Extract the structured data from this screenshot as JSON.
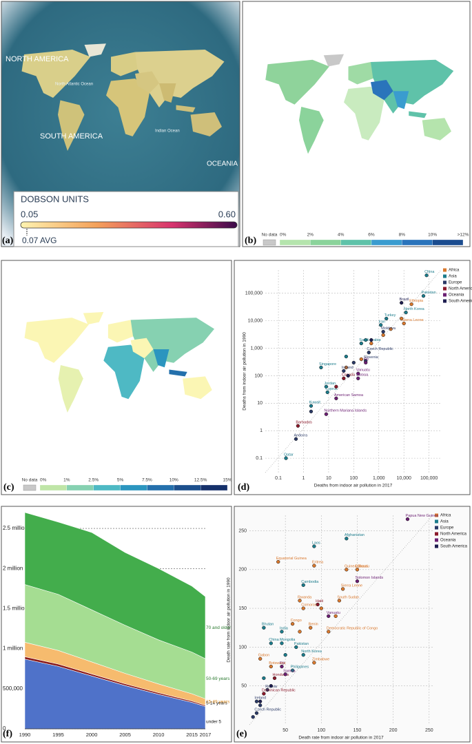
{
  "panels": {
    "a": {
      "label": "(a)",
      "map_labels": [
        "NORTH AMERICA",
        "North Atlantic Ocean",
        "SOUTH AMERICA",
        "Indian Ocean",
        "OCEANIA"
      ],
      "legend": {
        "title": "DOBSON UNITS",
        "min": "0.05",
        "max": "0.60",
        "avg": "0.07 AVG"
      }
    },
    "b": {
      "label": "(b)",
      "legend": {
        "labels": [
          "No data",
          "0%",
          "2%",
          "4%",
          "6%",
          "8%",
          "10%",
          ">12%"
        ],
        "colors": [
          "#c8c8c8",
          "#dff3d3",
          "#b5e4ad",
          "#8bd39b",
          "#5fc2a9",
          "#3a9ccf",
          "#2a74bb",
          "#1b4c8f"
        ]
      }
    },
    "c": {
      "label": "(c)",
      "legend": {
        "labels": [
          "No data",
          "0%",
          "1%",
          "2.5%",
          "5%",
          "7.5%",
          "10%",
          "12.5%",
          "15%"
        ],
        "colors": [
          "#c8c8c8",
          "#fbf6b4",
          "#bfe5a7",
          "#86d1b1",
          "#4eb9c4",
          "#2b95bf",
          "#2470ac",
          "#1c4f8c",
          "#15306a"
        ]
      }
    }
  },
  "chart_data": [
    {
      "type": "scatter",
      "panel_label": "(d)",
      "log": true,
      "x_label": "Deaths from indoor air pollution in 2017",
      "y_label": "Deaths from indoor air pollution in 1990",
      "xlim": [
        0.03,
        300000
      ],
      "ylim": [
        0.03,
        700000
      ],
      "xticks": [
        0.1,
        1,
        10,
        100,
        {
          "value": 1000,
          "label": "1,000"
        },
        {
          "value": 10000,
          "label": "10,000"
        },
        {
          "value": 100000,
          "label": "100,000"
        }
      ],
      "yticks": [
        0.1,
        1,
        10,
        100,
        {
          "value": 1000,
          "label": "1,000"
        },
        {
          "value": 10000,
          "label": "10,000"
        },
        {
          "value": 100000,
          "label": "100,000"
        }
      ],
      "grid": true,
      "series": [
        {
          "name": "Africa",
          "color": "#d9782d",
          "x": [
            20000,
            10000,
            8000,
            3000,
            500,
            1500,
            50,
            200
          ],
          "values": [
            40000,
            8000,
            12000,
            5000,
            1500,
            3000,
            200,
            400
          ],
          "labels": [
            "Ethiopia",
            "Sierra Leone",
            null,
            null,
            null,
            null,
            null,
            null
          ]
        },
        {
          "name": "Asia",
          "color": "#1c7c8c",
          "x": [
            80000,
            60000,
            12000,
            2000,
            1200,
            200,
            5,
            8,
            9,
            2,
            0.2,
            300,
            50
          ],
          "values": [
            450000,
            80000,
            20000,
            12000,
            7000,
            1500,
            200,
            40,
            25,
            8,
            0.1,
            2000,
            500
          ],
          "labels": [
            "China",
            "Pakistan",
            "North Korea",
            "Turkey",
            "Iran",
            "Saudi Arabia",
            "Singapore",
            "Jordan",
            "Cyprus",
            "Kuwait",
            "Qatar",
            null,
            null
          ]
        },
        {
          "name": "Europe",
          "color": "#2b3a67",
          "x": [
            1500,
            400,
            300,
            40,
            0.5,
            100,
            2
          ],
          "values": [
            4000,
            700,
            350,
            150,
            0.5,
            300,
            5
          ],
          "labels": [
            "Moldova",
            "Czech Republic",
            "Slovenia",
            "Ireland",
            "Andorra",
            null,
            null
          ]
        },
        {
          "name": "North America",
          "color": "#8b1a2b",
          "x": [
            40,
            0.6,
            20
          ],
          "values": [
            80,
            1.5,
            40
          ],
          "labels": [
            "Canada",
            "Barbados",
            null
          ]
        },
        {
          "name": "Oceania",
          "color": "#6b1f72",
          "x": [
            300,
            150,
            150,
            20,
            8
          ],
          "values": [
            300,
            120,
            80,
            15,
            4
          ],
          "labels": [
            "Fiji",
            "Vanuatu",
            "Samoa",
            "American Samoa",
            "Northern Mariana Islands"
          ]
        },
        {
          "name": "South America",
          "color": "#1e1e50",
          "x": [
            8000,
            500,
            60
          ],
          "values": [
            45000,
            2000,
            100
          ],
          "labels": [
            "Brazil",
            null,
            null
          ]
        }
      ]
    },
    {
      "type": "scatter",
      "panel_label": "(e)",
      "log": false,
      "x_label": "Death rate from indoor air pollution in 2017",
      "y_label": "Death rate from indoor air pollution in 1990",
      "xlim": [
        0,
        255
      ],
      "ylim": [
        0,
        270
      ],
      "xticks": [
        50,
        100,
        150,
        200,
        250
      ],
      "yticks": [
        50,
        100,
        150,
        200,
        250
      ],
      "grid": true,
      "series": [
        {
          "name": "Africa",
          "color": "#d9782d",
          "x": [
            40,
            90,
            135,
            150,
            130,
            70,
            75,
            125,
            60,
            85,
            110,
            15,
            90,
            30,
            100,
            120,
            70
          ],
          "values": [
            210,
            205,
            200,
            200,
            175,
            160,
            150,
            160,
            130,
            125,
            120,
            85,
            80,
            75,
            150,
            140,
            120
          ],
          "labels": [
            "Equatorial Guinea",
            "Eritrea",
            "Guinea-Bissau",
            "Djibouti",
            "Sierra Leone",
            "Rwanda",
            "Comoros",
            "South Sudan",
            "Congo",
            "Benin",
            "Democratic Republic of Congo",
            "Gabon",
            "Zimbabwe",
            "Botswana",
            null,
            null,
            null
          ]
        },
        {
          "name": "Asia",
          "color": "#1c7c8c",
          "x": [
            135,
            90,
            75,
            20,
            45,
            30,
            45,
            65,
            75,
            60,
            50,
            20
          ],
          "values": [
            240,
            230,
            180,
            125,
            120,
            105,
            105,
            100,
            90,
            70,
            90,
            60
          ],
          "labels": [
            "Afghanistan",
            "Laos",
            "Cambodia",
            "Bhutan",
            "India",
            "China",
            "Mongolia",
            "Pakistan",
            "North Korea",
            "Philippines",
            null,
            null
          ]
        },
        {
          "name": "Europe",
          "color": "#2b3a67",
          "x": [
            25,
            10,
            10,
            5,
            15
          ],
          "values": [
            45,
            30,
            15,
            10,
            25
          ],
          "labels": [
            "Russia",
            "Ireland",
            "Czech Republic",
            null,
            null
          ]
        },
        {
          "name": "North America",
          "color": "#8b1a2b",
          "x": [
            95,
            35,
            20
          ],
          "values": [
            155,
            60,
            40
          ],
          "labels": [
            "Haiti",
            "Honduras",
            "Dominican Republic"
          ]
        },
        {
          "name": "Oceania",
          "color": "#6b1f72",
          "x": [
            220,
            150,
            110,
            45,
            50
          ],
          "values": [
            265,
            185,
            140,
            75,
            65
          ],
          "labels": [
            "Papua New Guinea",
            "Solomon Islands",
            "Vanuatu",
            "Fiji",
            "Samoa"
          ]
        },
        {
          "name": "South America",
          "color": "#1e1e50",
          "x": [
            30,
            15
          ],
          "values": [
            50,
            30
          ],
          "labels": [
            null,
            null
          ]
        }
      ]
    },
    {
      "type": "area",
      "panel_label": "(f)",
      "stacked": true,
      "x": [
        1990,
        1995,
        2000,
        2005,
        2010,
        2015,
        2017
      ],
      "xlim": [
        1990,
        2017
      ],
      "xticks": [
        1990,
        1995,
        2000,
        2005,
        2010,
        2015,
        2017
      ],
      "ylim": [
        0,
        2750000
      ],
      "yticks": [
        0,
        {
          "value": 500000,
          "label": "500,000"
        },
        {
          "value": 1000000,
          "label": "1 million"
        },
        {
          "value": 1500000,
          "label": "1.5 million"
        },
        {
          "value": 2000000,
          "label": "2 million"
        },
        {
          "value": 2500000,
          "label": "2.5 million"
        }
      ],
      "grid": true,
      "series": [
        {
          "name": "under 5",
          "color": "#4f72c9",
          "values": [
            870000,
            780000,
            660000,
            540000,
            430000,
            330000,
            280000
          ]
        },
        {
          "name": "5-14 years",
          "color": "#8a1b1b",
          "values": [
            30000,
            28000,
            25000,
            22000,
            20000,
            17000,
            15000
          ]
        },
        {
          "name": "15-49 years",
          "color": "#f6bb6e",
          "values": [
            180000,
            170000,
            150000,
            130000,
            110000,
            90000,
            80000
          ]
        },
        {
          "name": "50-69 years",
          "color": "#a5dd92",
          "values": [
            720000,
            700000,
            650000,
            600000,
            550000,
            520000,
            500000
          ]
        },
        {
          "name": "70 and older",
          "color": "#43ad4c",
          "values": [
            900000,
            902000,
            965000,
            908000,
            890000,
            823000,
            775000
          ]
        }
      ]
    }
  ]
}
